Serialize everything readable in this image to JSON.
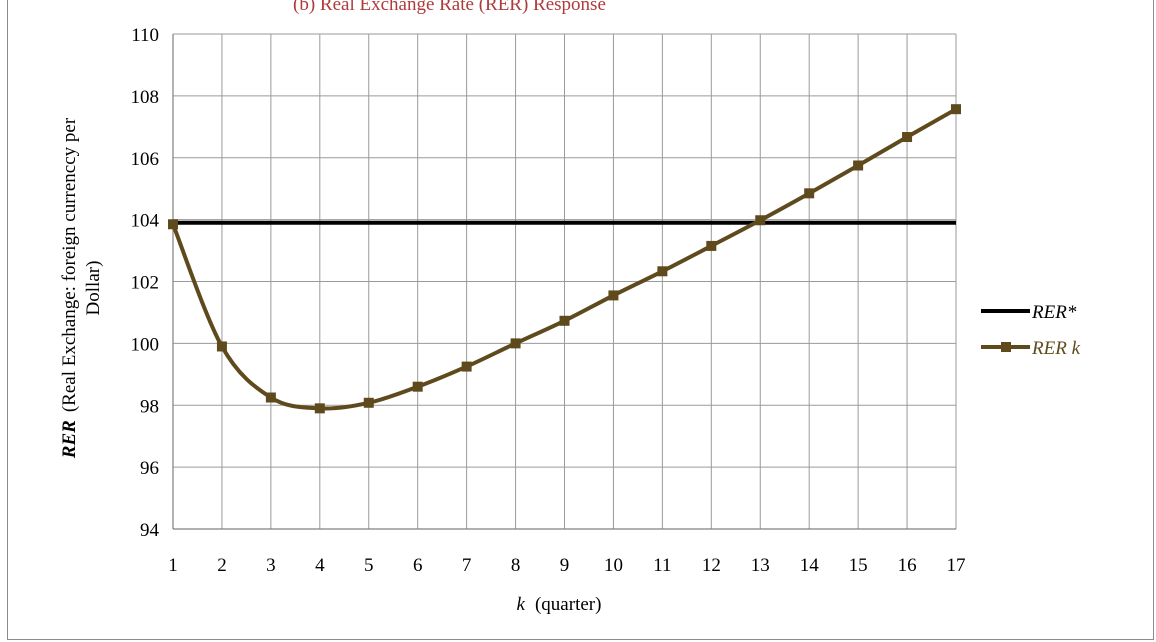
{
  "chart_data": {
    "type": "line",
    "title": "(b) Real Exchange Rate (RER) Response",
    "xlabel_var": "k",
    "xlabel_unit": "(quarter)",
    "ylabel_var": "RER",
    "ylabel_line1": "(Real Exchange: foreign currenccy per",
    "ylabel_line2": "Dollar)",
    "x": [
      1,
      2,
      3,
      4,
      5,
      6,
      7,
      8,
      9,
      10,
      11,
      12,
      13,
      14,
      15,
      16,
      17
    ],
    "ylim": [
      94,
      110
    ],
    "yticks": [
      94,
      96,
      98,
      100,
      102,
      104,
      106,
      108,
      110
    ],
    "grid": true,
    "legend_position": "right",
    "series": [
      {
        "name": "RER*",
        "color": "#000000",
        "marker": "none",
        "values": [
          103.9,
          103.9,
          103.9,
          103.9,
          103.9,
          103.9,
          103.9,
          103.9,
          103.9,
          103.9,
          103.9,
          103.9,
          103.9,
          103.9,
          103.9,
          103.9,
          103.9
        ]
      },
      {
        "name": "RER k",
        "color": "#5e4a1c",
        "marker": "square",
        "values": [
          103.85,
          99.9,
          98.25,
          97.9,
          98.08,
          98.6,
          99.25,
          100.0,
          100.73,
          101.55,
          102.33,
          103.15,
          103.98,
          104.85,
          105.75,
          106.67,
          107.57
        ]
      }
    ]
  },
  "colors": {
    "grid": "#9a9a9a",
    "ylabel": "#6b6b1a",
    "title": "#b03a3a"
  }
}
